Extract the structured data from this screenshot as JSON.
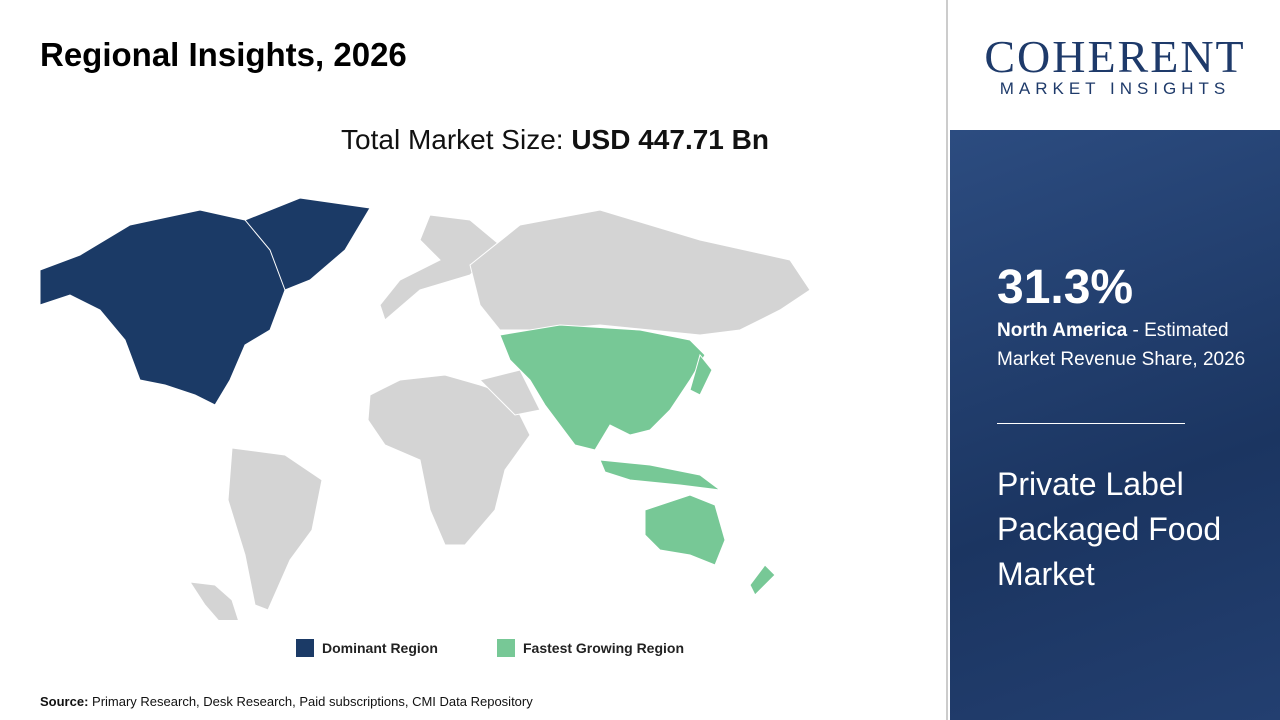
{
  "header": {
    "title": "Regional Insights, 2026"
  },
  "market_size": {
    "label": "Total Market Size:",
    "value": "USD 447.71 Bn"
  },
  "legend": [
    {
      "label": "Dominant Region",
      "color": "#1b3a66"
    },
    {
      "label": "Fastest Growing Region",
      "color": "#77c896"
    }
  ],
  "source": {
    "label": "Source:",
    "text": "Primary Research, Desk Research, Paid subscriptions, CMI Data Repository"
  },
  "logo": {
    "name": "COHERENT",
    "tagline": "MARKET INSIGHTS"
  },
  "highlight": {
    "share": "31.3%",
    "region": "North America",
    "description": "- Estimated Market Revenue Share, 2026"
  },
  "market_name": "Private Label Packaged Food Market"
}
